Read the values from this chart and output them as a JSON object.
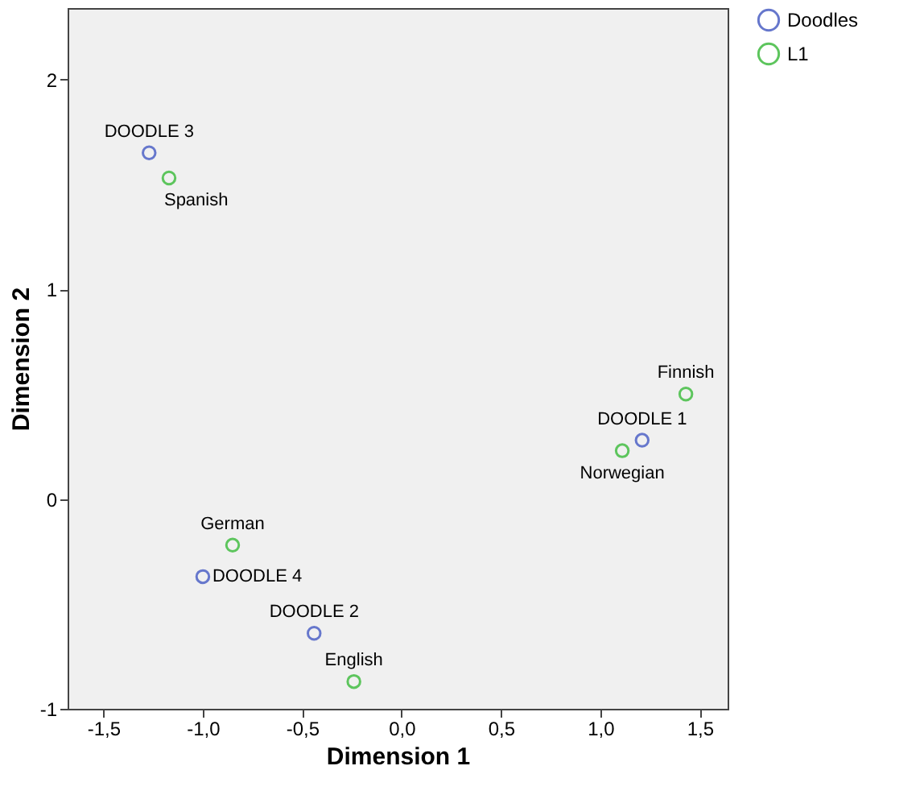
{
  "chart_data": {
    "type": "scatter",
    "xlabel": "Dimension 1",
    "ylabel": "Dimension 2",
    "xlim": [
      -1.68,
      1.64
    ],
    "ylim": [
      -1,
      2.34
    ],
    "xticks": [
      {
        "value": -1.5,
        "label": "-1,5"
      },
      {
        "value": -1,
        "label": "-1,0"
      },
      {
        "value": -0.5,
        "label": "-0,5"
      },
      {
        "value": 0,
        "label": "0,0"
      },
      {
        "value": 0.5,
        "label": "0,5"
      },
      {
        "value": 1,
        "label": "1,0"
      },
      {
        "value": 1.5,
        "label": "1,5"
      }
    ],
    "yticks": [
      -1,
      0,
      1,
      2
    ],
    "grid": false,
    "legend": "top right",
    "marker": "circle",
    "series": [
      {
        "name": "Doodles",
        "color": "#6677cc",
        "x": [
          1.21,
          -0.44,
          -1.27,
          -1.0
        ],
        "values": [
          0.28,
          -0.64,
          1.65,
          -0.37
        ]
      },
      {
        "name": "L1",
        "color": "#5dc55d",
        "x": [
          -0.24,
          -0.85,
          -1.17,
          1.43,
          1.11
        ],
        "values": [
          -0.87,
          -0.22,
          1.53,
          0.5,
          0.23
        ]
      }
    ],
    "annotations": [
      {
        "text": "DOODLE 1",
        "x": 1.21,
        "y": 0.28
      },
      {
        "text": "DOODLE 2",
        "x": -0.44,
        "y": -0.64
      },
      {
        "text": "DOODLE 3",
        "x": -1.27,
        "y": 1.65
      },
      {
        "text": "DOODLE 4",
        "x": -1.0,
        "y": -0.37
      },
      {
        "text": "English",
        "x": -0.24,
        "y": -0.87
      },
      {
        "text": "German",
        "x": -0.85,
        "y": -0.22
      },
      {
        "text": "Spanish",
        "x": -1.17,
        "y": 1.53
      },
      {
        "text": "Finnish",
        "x": 1.43,
        "y": 0.5
      },
      {
        "text": "Norwegian",
        "x": 1.11,
        "y": 0.23
      }
    ]
  }
}
